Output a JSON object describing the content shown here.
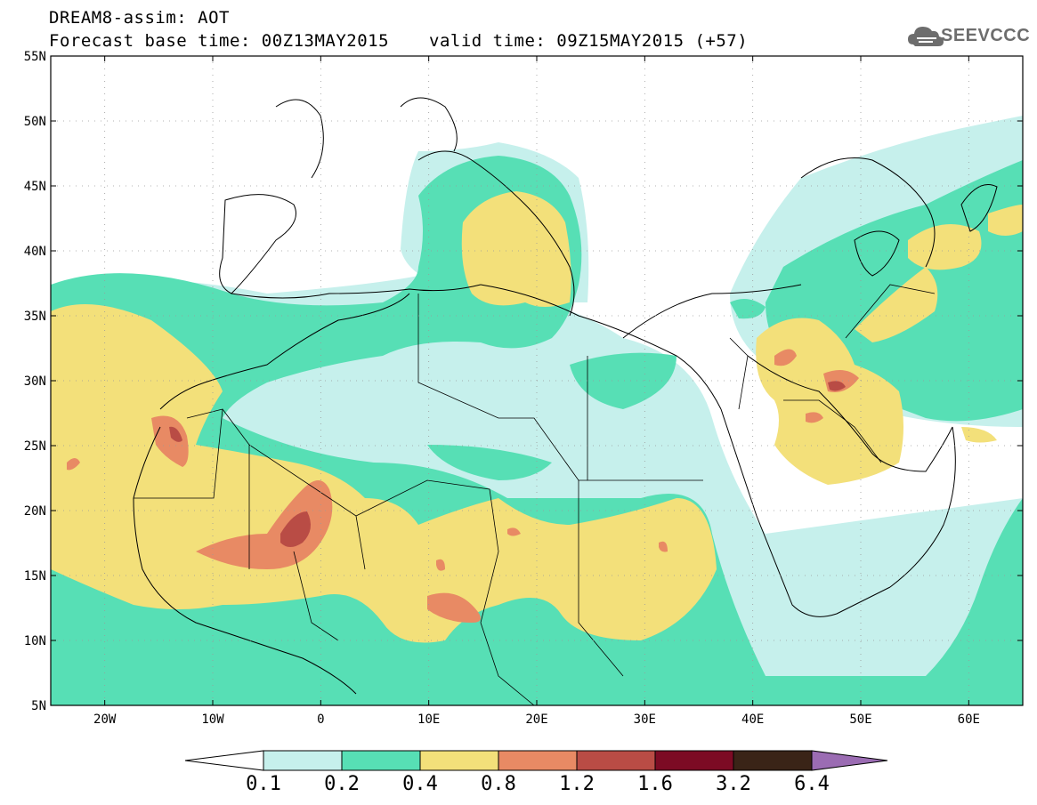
{
  "title": {
    "line1": "DREAM8-assim: AOT",
    "base_time": "Forecast base time: 00Z13MAY2015",
    "valid_time": "valid time: 09Z15MAY2015 (+57)"
  },
  "logo": {
    "text": "SEEVCCC",
    "icon": "cloud-icon"
  },
  "map": {
    "lon_range": [
      -25,
      65
    ],
    "lat_range": [
      5,
      55
    ],
    "lon_ticks": [
      "20W",
      "10W",
      "0",
      "10E",
      "20E",
      "30E",
      "40E",
      "50E",
      "60E"
    ],
    "lat_ticks": [
      "5N",
      "10N",
      "15N",
      "20N",
      "25N",
      "30N",
      "35N",
      "40N",
      "45N",
      "50N",
      "55N"
    ],
    "grid": "dotted"
  },
  "colorbar": {
    "labels": [
      "0.1",
      "0.2",
      "0.4",
      "0.8",
      "1.2",
      "1.6",
      "3.2",
      "6.4"
    ],
    "colors": [
      "#ffffff",
      "#c6f0ec",
      "#57dfb5",
      "#f3e07a",
      "#e88a64",
      "#b94c45",
      "#7c0b24",
      "#3a2417",
      "#9b6cb3"
    ]
  }
}
